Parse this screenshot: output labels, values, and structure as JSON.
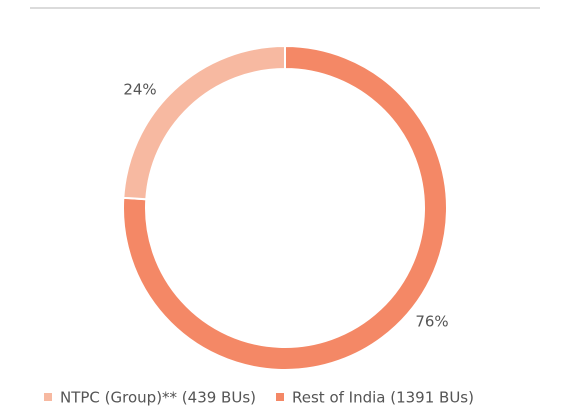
{
  "chart_data": {
    "type": "donut",
    "categories": [
      "NTPC (Group)** (439 BUs)",
      "Rest of India (1391 BUs)"
    ],
    "values": [
      24,
      76
    ],
    "value_labels": [
      "24%",
      "76%"
    ],
    "colors": [
      "#f7b9a1",
      "#f48866"
    ],
    "legend": "bottom"
  }
}
